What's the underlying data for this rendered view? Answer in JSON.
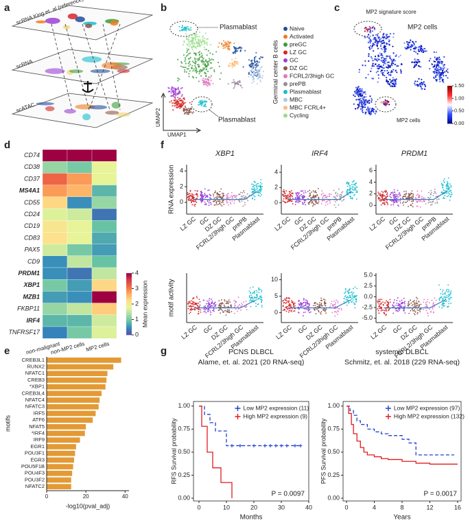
{
  "panel_labels": [
    "a",
    "b",
    "c",
    "d",
    "e",
    "f",
    "g"
  ],
  "panel_a": {
    "layers": [
      "scRNA King et. al (reference)",
      "scRNA",
      "scATAC"
    ]
  },
  "panel_b": {
    "annotations": [
      "Plasmablast",
      "Plasmablast"
    ],
    "x_label": "UMAP1",
    "y_label": "UMAP2",
    "legend_title": "Germinal center B cells",
    "legend": [
      {
        "name": "Naive",
        "color": "#1f4e9c"
      },
      {
        "name": "Activated",
        "color": "#f07c1e"
      },
      {
        "name": "preGC",
        "color": "#3a9c3a"
      },
      {
        "name": "LZ GC",
        "color": "#d62728"
      },
      {
        "name": "GC",
        "color": "#9b3fd6"
      },
      {
        "name": "DZ GC",
        "color": "#8c564b"
      },
      {
        "name": "FCRL2/3high GC",
        "color": "#e377c2"
      },
      {
        "name": "prePB",
        "color": "#9a8a9a"
      },
      {
        "name": "Plasmablast",
        "color": "#17becf"
      },
      {
        "name": "MBC",
        "color": "#aec7e8"
      },
      {
        "name": "MBC FCRL4+",
        "color": "#ffbb78"
      },
      {
        "name": "Cycling",
        "color": "#98df8a"
      }
    ]
  },
  "panel_c": {
    "title": "MP2 signature score",
    "annotations": [
      "MP2 cells",
      "MP2 cells"
    ],
    "colorscale": [
      "#00008b",
      "#3050ff",
      "#ffffff",
      "#ff3030",
      "#8b0000"
    ],
    "zlim": [
      0,
      1.5
    ],
    "zticks": [
      {
        "value": 0,
        "label": "0.00"
      },
      {
        "value": 0.5,
        "label": "0.50"
      },
      {
        "value": 1,
        "label": "1.00"
      },
      {
        "value": 1.5,
        "label": "1.50"
      }
    ]
  },
  "chart_data": [
    {
      "type": "heatmap",
      "rows": [
        "CD74",
        "CD38",
        "CD37",
        "MS4A1",
        "CD55",
        "CD24",
        "CD19",
        "CD83",
        "PAX5",
        "CD9",
        "PRDM1",
        "XBP1",
        "MZB1",
        "FKBP11",
        "IRF4",
        "TNFRSF17"
      ],
      "columns": [
        "non-malignant",
        "non-MP2 cells",
        "MP2 cells"
      ],
      "values": [
        [
          4,
          4,
          4
        ],
        [
          1.2,
          1.0,
          1.8
        ],
        [
          3.2,
          2.8,
          1.8
        ],
        [
          2.8,
          2.6,
          0.8
        ],
        [
          2.3,
          0.5,
          1.2
        ],
        [
          1.7,
          1.6,
          0.3
        ],
        [
          2.1,
          1.8,
          0.9
        ],
        [
          2.2,
          1.8,
          0.7
        ],
        [
          1.6,
          1.0,
          0.6
        ],
        [
          0.5,
          1.5,
          0.9
        ],
        [
          0.5,
          0.3,
          1.5
        ],
        [
          1.0,
          0.6,
          2.3
        ],
        [
          0.6,
          0.5,
          4.0
        ],
        [
          1.2,
          1.5,
          2.4
        ],
        [
          0.8,
          0.8,
          1.6
        ],
        [
          0.4,
          1.0,
          1.7
        ]
      ],
      "colorscale": [
        "#5e4fa2",
        "#3288bd",
        "#66c2a5",
        "#abdda4",
        "#e6f598",
        "#fee08b",
        "#fdae61",
        "#f46d43",
        "#d53e4f",
        "#9e0142"
      ],
      "zlim": [
        0,
        4
      ],
      "zticks": [
        0,
        1,
        2,
        3,
        4
      ],
      "colorbar_label": "Mean expression"
    },
    {
      "type": "hbar",
      "categories": [
        "CREB3L1",
        "RUNX2",
        "NFATC1",
        "CREB3",
        "*XBP1",
        "CREB3L4",
        "NFATC4",
        "NFATC3",
        "IRF5",
        "ATF6",
        "NFAT5",
        "*IRF4",
        "IRF9",
        "EGR1",
        "POU3F1",
        "EGR3",
        "POU5F1B",
        "POU4F3",
        "POU3F2",
        "NFATC2"
      ],
      "values": [
        38,
        34,
        31,
        30.5,
        30,
        28,
        27,
        26.5,
        25,
        23.5,
        20,
        19.5,
        17,
        15,
        14.5,
        14,
        13.5,
        13,
        12.5,
        12.5
      ],
      "color": "#e39a35",
      "xlim": [
        0,
        42
      ],
      "xticks": [
        0,
        20,
        40
      ],
      "xlabel": "-log10(pval_adj)",
      "ylabel": "motifs"
    },
    {
      "type": "strip",
      "title": "XBP1",
      "ylabel": "RNA expression",
      "categories": [
        "LZ GC",
        "GC",
        "DZ GC",
        "FCRL2/3high GC",
        "prePB",
        "Plasmablast"
      ],
      "ylim": [
        -1.5,
        4.8
      ],
      "yticks": [
        0,
        2,
        4
      ]
    },
    {
      "type": "strip",
      "title": "IRF4",
      "categories": [
        "LZ GC",
        "GC",
        "DZ GC",
        "FCRL2/3high GC",
        "prePB",
        "Plasmablast"
      ],
      "ylim": [
        -1.5,
        5
      ],
      "yticks": [
        0,
        2,
        4
      ]
    },
    {
      "type": "strip",
      "title": "PRDM1",
      "categories": [
        "LZ GC",
        "GC",
        "DZ GC",
        "FCRL2/3high GC",
        "prePB",
        "Plasmablast"
      ],
      "ylim": [
        -1.5,
        7
      ],
      "yticks": [
        0,
        2,
        4,
        6
      ]
    },
    {
      "type": "strip",
      "ylabel": "motif activity",
      "categories": [
        "LZ GC",
        "GC",
        "DZ GC",
        "FCRL2/3high GC",
        "Plasmablast"
      ],
      "ylim": [
        -3,
        6
      ]
    },
    {
      "type": "strip",
      "categories": [
        "LZ GC",
        "GC",
        "DZ GC",
        "FCRL2/3high GC",
        "Plasmablast"
      ],
      "ylim": [
        -3,
        12
      ],
      "yticks": [
        0,
        5,
        10
      ]
    },
    {
      "type": "strip",
      "categories": [
        "LZ GC",
        "GC",
        "DZ GC",
        "FCRL2/3high GC",
        "Plasmablast"
      ],
      "ylim": [
        -6,
        5.5
      ],
      "yticks": [
        {
          "value": 5,
          "label": "5.0"
        },
        {
          "value": 2.5,
          "label": "2.5"
        },
        {
          "value": 0,
          "label": "0.0"
        },
        {
          "value": -2.5,
          "label": "-2.5"
        },
        {
          "value": -5,
          "label": "-5.0"
        }
      ]
    },
    {
      "type": "km",
      "title": "PCNS DLBCL",
      "subtitle": "Alame, et. al. 2021 (20 RNA-seq)",
      "xlabel": "Months",
      "ylabel": "RFS Survival probability",
      "xlim": [
        -2,
        40
      ],
      "xticks": [
        0,
        10,
        20,
        30,
        40
      ],
      "ylim": [
        -0.03,
        1.05
      ],
      "yticks": [
        {
          "value": 0,
          "label": "0.00"
        },
        {
          "value": 0.25,
          "label": "0.25"
        },
        {
          "value": 0.5,
          "label": "0.50"
        },
        {
          "value": 0.75,
          "label": "0.75"
        },
        {
          "value": 1,
          "label": "1.00"
        }
      ],
      "annotation": "P = 0.0097",
      "series": [
        {
          "name": "Low MP2 expression (11)",
          "color": "#1f3fd0",
          "linestyle": "dashed",
          "x": [
            0,
            2,
            4,
            6,
            10,
            37
          ],
          "y": [
            1,
            0.91,
            0.82,
            0.73,
            0.57,
            0.57
          ],
          "censor_x": [
            12,
            15,
            20,
            24,
            26,
            28,
            30,
            32,
            35,
            37
          ]
        },
        {
          "name": "High MP2 expression (9)",
          "color": "#e31a1c",
          "linestyle": "solid",
          "x": [
            0,
            1,
            3,
            5,
            8,
            12
          ],
          "y": [
            1,
            0.78,
            0.5,
            0.33,
            0.17,
            0
          ]
        }
      ]
    },
    {
      "type": "km",
      "title": "systemic DLBCL",
      "subtitle": "Schmitz, et. al. 2018 (229 RNA-seq)",
      "xlabel": "Years",
      "ylabel": "PFS Survival probability",
      "xlim": [
        -0.5,
        16.5
      ],
      "xticks": [
        0,
        4,
        8,
        12,
        16
      ],
      "ylim": [
        -0.03,
        1.05
      ],
      "yticks": [
        {
          "value": 0,
          "label": "0.00"
        },
        {
          "value": 0.25,
          "label": "0.25"
        },
        {
          "value": 0.5,
          "label": "0.50"
        },
        {
          "value": 0.75,
          "label": "0.75"
        },
        {
          "value": 1,
          "label": "1.00"
        }
      ],
      "annotation": "P = 0.0017",
      "series": [
        {
          "name": "Low MP2 expression (97)",
          "color": "#1f3fd0",
          "linestyle": "dashed",
          "x": [
            0,
            0.5,
            1,
            1.5,
            2,
            3,
            4,
            5,
            6,
            8,
            9,
            10,
            12,
            15.5
          ],
          "y": [
            1,
            0.95,
            0.9,
            0.84,
            0.8,
            0.75,
            0.72,
            0.7,
            0.68,
            0.64,
            0.6,
            0.47,
            0.47,
            0.47
          ]
        },
        {
          "name": "High MP2 expression (132)",
          "color": "#e31a1c",
          "linestyle": "solid",
          "x": [
            0,
            0.3,
            0.7,
            1,
            1.5,
            2,
            2.5,
            3,
            4,
            5,
            6,
            8,
            10,
            12,
            16
          ],
          "y": [
            1,
            0.92,
            0.8,
            0.7,
            0.62,
            0.55,
            0.5,
            0.47,
            0.45,
            0.43,
            0.42,
            0.4,
            0.38,
            0.37,
            0.37
          ]
        }
      ]
    }
  ]
}
